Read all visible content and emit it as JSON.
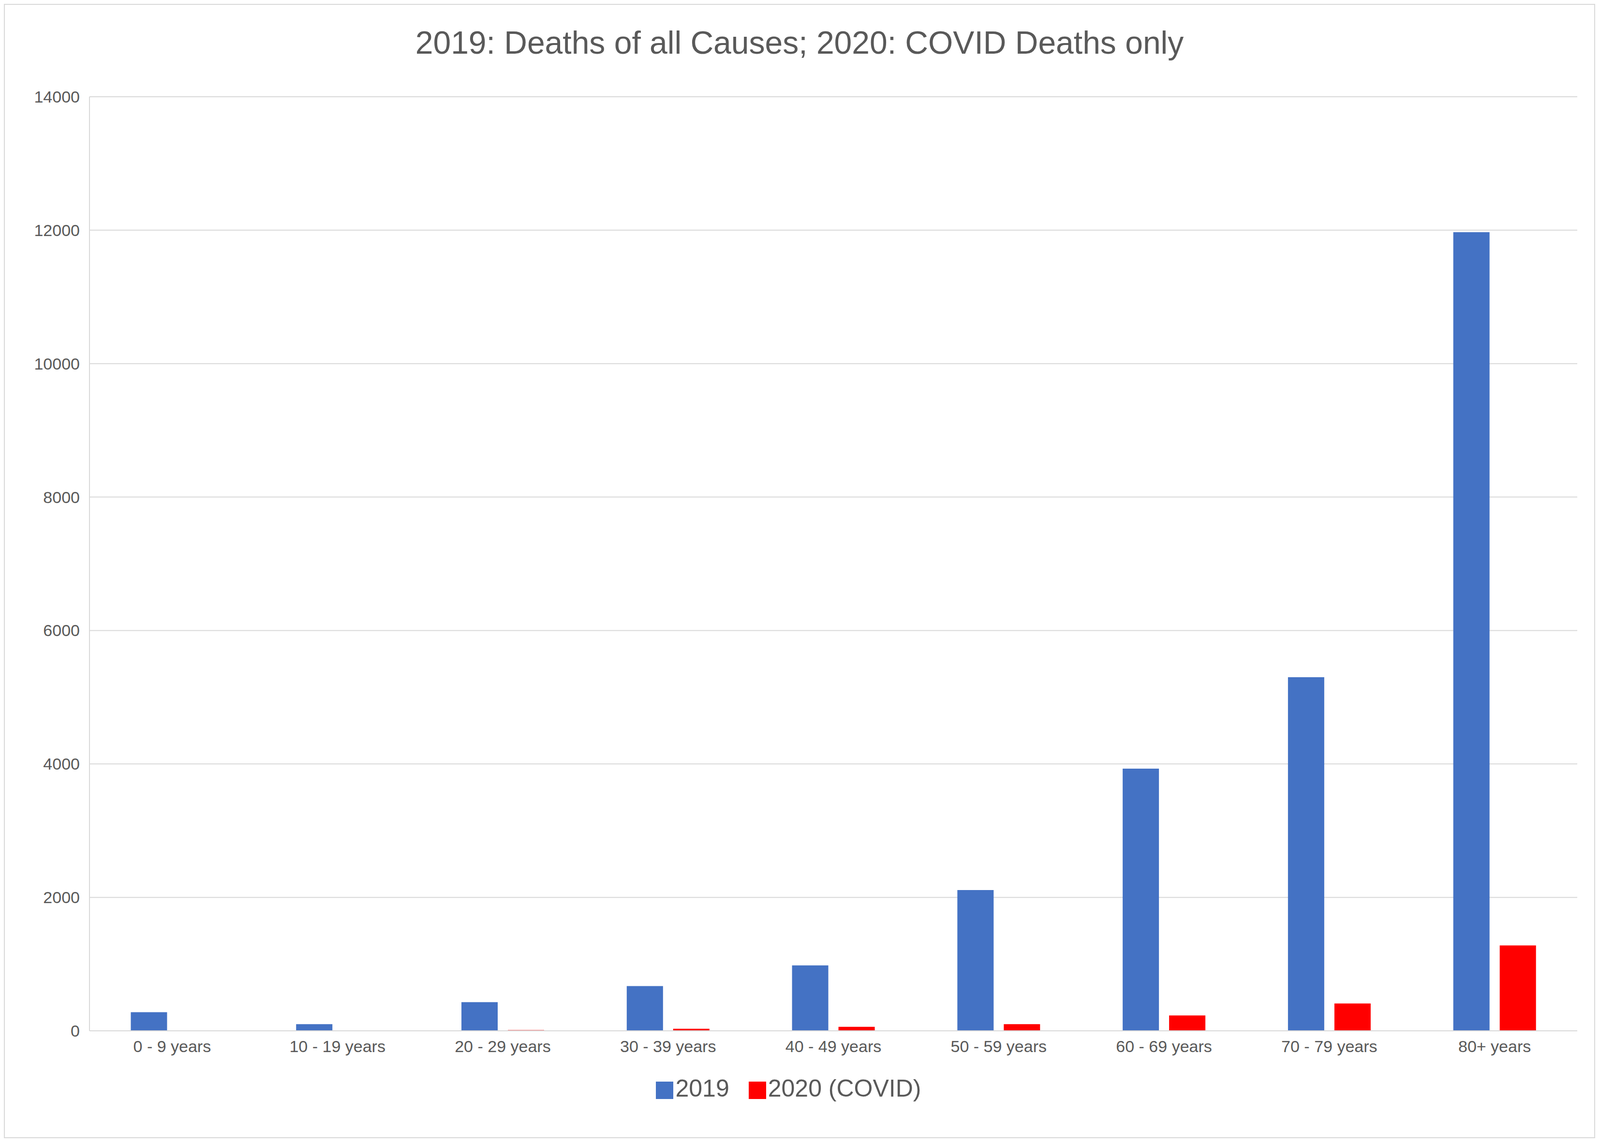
{
  "chart_data": {
    "type": "bar",
    "title": "2019: Deaths of all Causes; 2020: COVID Deaths only",
    "categories": [
      "0 - 9 years",
      "10 - 19 years",
      "20 - 29 years",
      "30 - 39 years",
      "40 - 49 years",
      "50 - 59 years",
      "60 - 69 years",
      "70 - 79 years",
      "80+ years"
    ],
    "series": [
      {
        "name": "2019",
        "color": "#4472c4",
        "values": [
          280,
          100,
          430,
          670,
          980,
          2110,
          3930,
          5300,
          11970
        ]
      },
      {
        "name": "2020 (COVID)",
        "color": "#ff0000",
        "values": [
          0,
          0,
          10,
          30,
          60,
          100,
          230,
          410,
          1280
        ]
      }
    ],
    "ylim": [
      0,
      14000
    ],
    "yticks": [
      0,
      2000,
      4000,
      6000,
      8000,
      10000,
      12000,
      14000
    ],
    "grid": true,
    "legend": "bottom"
  }
}
